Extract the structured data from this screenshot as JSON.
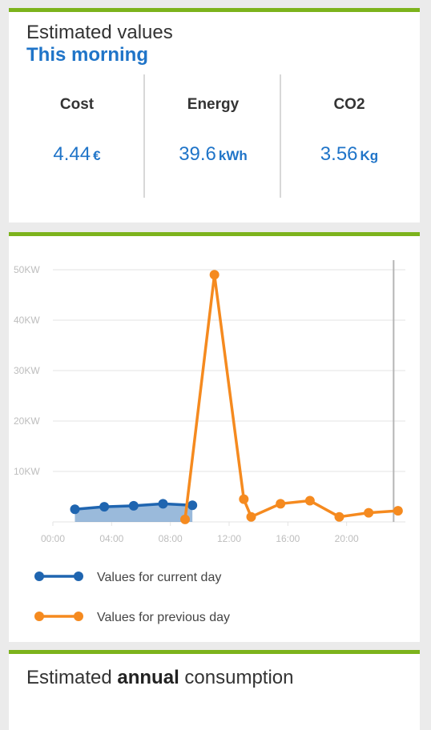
{
  "estimates": {
    "title": "Estimated values",
    "subtitle": "This morning",
    "metrics": [
      {
        "label": "Cost",
        "value": "4.44",
        "unit": "€"
      },
      {
        "label": "Energy",
        "value": "39.6",
        "unit": "kWh"
      },
      {
        "label": "CO2",
        "value": "3.56",
        "unit": "Kg"
      }
    ]
  },
  "chart_data": {
    "type": "line",
    "y_tick_labels": [
      "10KW",
      "20KW",
      "30KW",
      "40KW",
      "50KW"
    ],
    "y_ticks": [
      10,
      20,
      30,
      40,
      50
    ],
    "x_tick_labels": [
      "00:00",
      "04:00",
      "08:00",
      "12:00",
      "16:00",
      "20:00"
    ],
    "x_ticks": [
      0,
      4,
      8,
      12,
      16,
      20
    ],
    "xlim": [
      0,
      24
    ],
    "ylim": [
      0,
      50
    ],
    "series": [
      {
        "name": "Values for current day",
        "color": "#1f65b0",
        "area": true,
        "points": [
          [
            1.5,
            2.5
          ],
          [
            3.5,
            3.0
          ],
          [
            5.5,
            3.2
          ],
          [
            7.5,
            3.6
          ],
          [
            9.5,
            3.3
          ]
        ]
      },
      {
        "name": "Values for previous day",
        "color": "#f58a1f",
        "area": false,
        "points": [
          [
            9.0,
            0.5
          ],
          [
            11.0,
            49
          ],
          [
            13.0,
            4.5
          ],
          [
            13.5,
            1.0
          ],
          [
            15.5,
            3.6
          ],
          [
            17.5,
            4.2
          ],
          [
            19.5,
            1.0
          ],
          [
            21.5,
            1.8
          ],
          [
            23.5,
            2.2
          ]
        ]
      }
    ],
    "current_time_marker": 23.2
  },
  "annual": {
    "prefix": "Estimated ",
    "bold": "annual",
    "suffix": " consumption"
  }
}
